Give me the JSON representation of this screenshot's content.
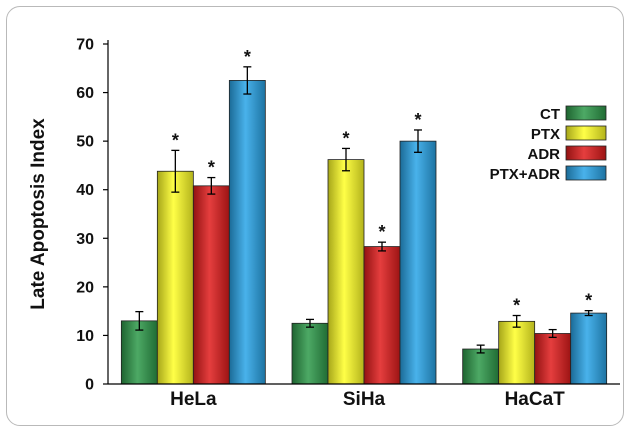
{
  "chart_data": {
    "type": "bar",
    "title": "",
    "xlabel": "",
    "ylabel": "Late Apoptosis Index",
    "ylim": [
      0,
      70
    ],
    "yticks": [
      "0",
      "10",
      "20",
      "30",
      "40",
      "50",
      "60",
      "70"
    ],
    "categories": [
      "HeLa",
      "SiHa",
      "HaCaT"
    ],
    "legend_position": "top-right",
    "significance_marker": "*",
    "series": [
      {
        "name": "CT",
        "color": "#2e9a4a",
        "values": [
          13.0,
          12.5,
          7.2
        ],
        "errors": [
          1.9,
          0.8,
          0.8
        ],
        "significant": [
          false,
          false,
          false
        ]
      },
      {
        "name": "PTX",
        "color": "#ffff26",
        "values": [
          43.8,
          46.2,
          12.9
        ],
        "errors": [
          4.3,
          2.3,
          1.2
        ],
        "significant": [
          true,
          true,
          true
        ]
      },
      {
        "name": "ADR",
        "color": "#e01c1c",
        "values": [
          40.8,
          28.3,
          10.4
        ],
        "errors": [
          1.7,
          0.9,
          0.8
        ],
        "significant": [
          true,
          true,
          false
        ]
      },
      {
        "name": "PTX+ADR",
        "color": "#29a4e8",
        "values": [
          62.5,
          50.0,
          14.6
        ],
        "errors": [
          2.8,
          2.3,
          0.5
        ],
        "significant": [
          true,
          true,
          true
        ]
      }
    ]
  }
}
